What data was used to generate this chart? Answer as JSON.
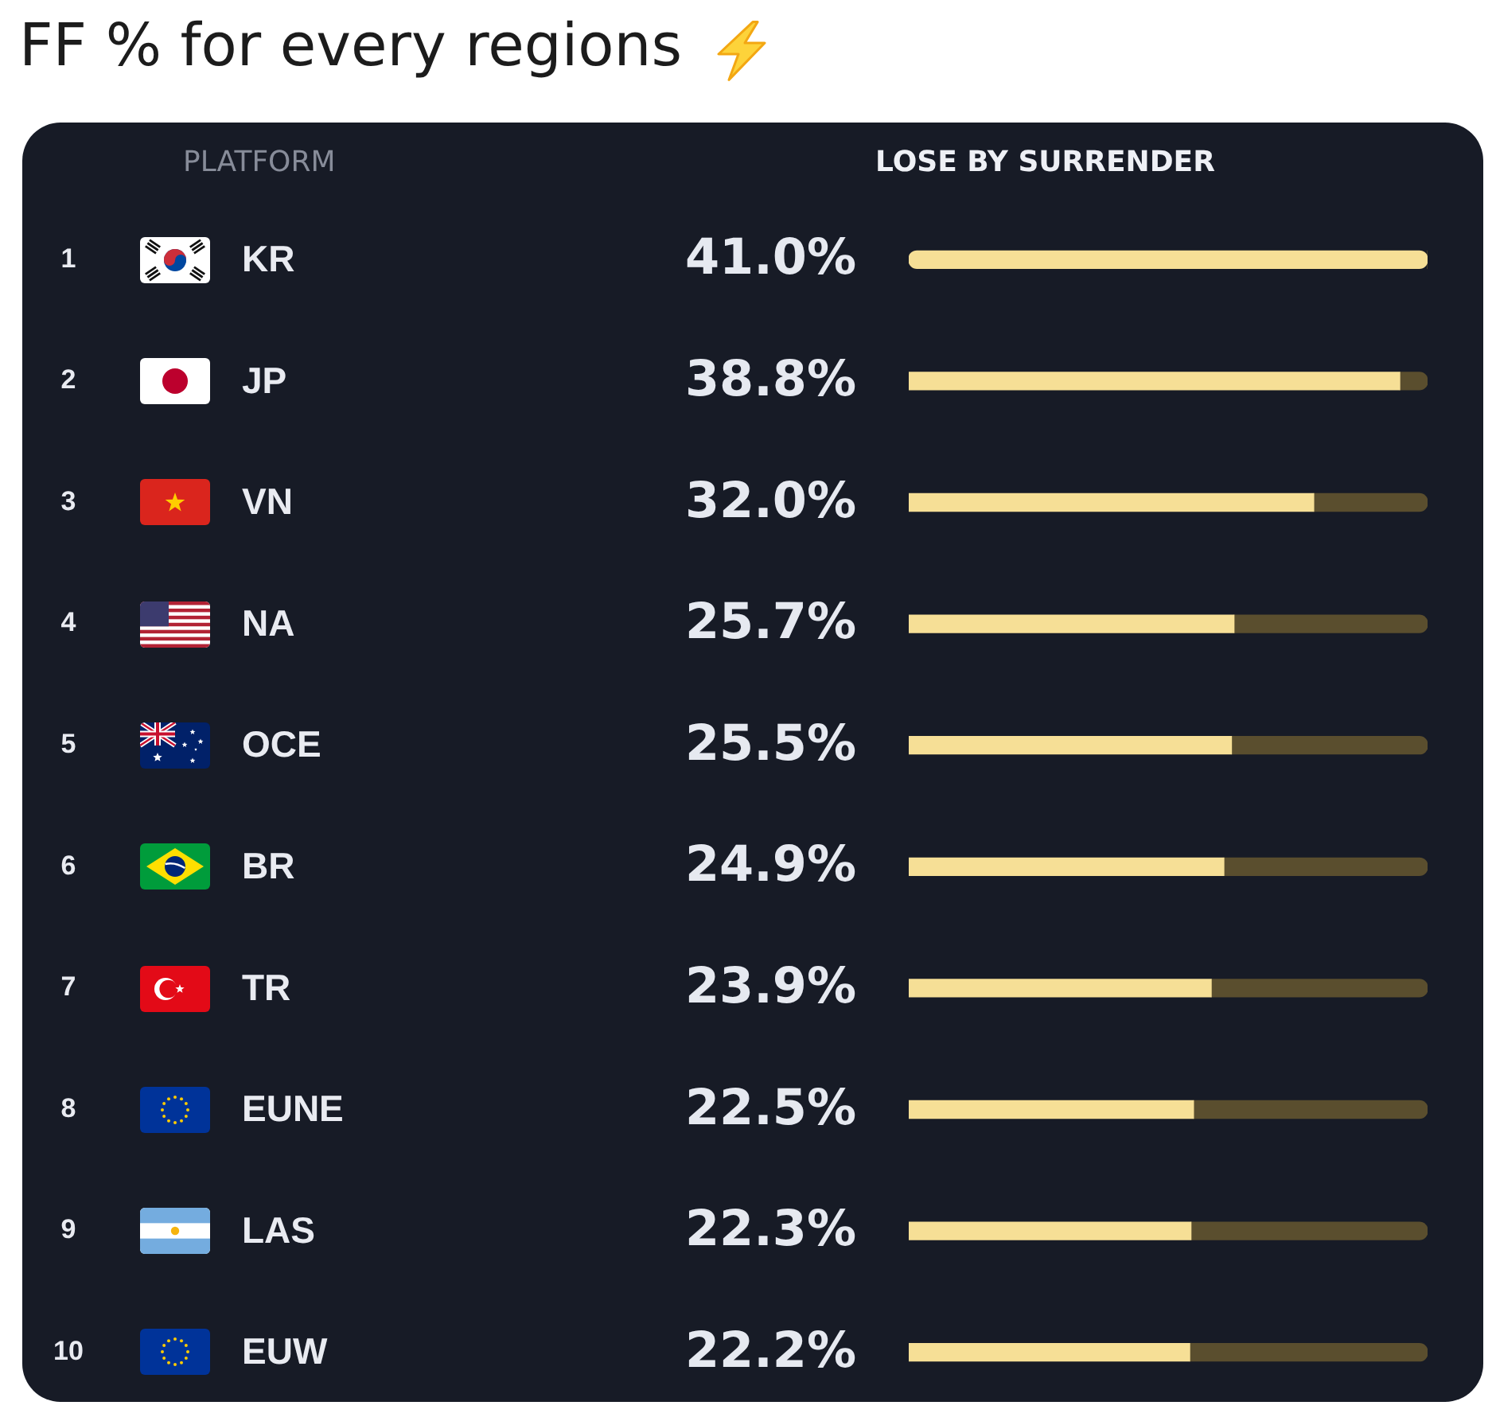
{
  "chart_data": {
    "type": "bar",
    "orientation": "horizontal",
    "stacked": true,
    "title": "FF % for every regions",
    "ylabel": "PLATFORM",
    "xlabel": "LOSE BY SURRENDER",
    "categories": [
      "KR",
      "JP",
      "VN",
      "NA",
      "OCE",
      "BR",
      "TR",
      "EUNE",
      "LAS",
      "EUW"
    ],
    "series": [
      {
        "color": "#f6df96",
        "values": [
          41.0,
          38.8,
          32.0,
          25.7,
          25.5,
          24.9,
          23.9,
          22.5,
          22.3,
          22.2
        ],
        "value_labels": [
          "41.0%",
          "38.8%",
          "32.0%",
          "25.7%",
          "25.5%",
          "24.9%",
          "23.9%",
          "22.5%",
          "22.3%",
          "22.2%"
        ]
      },
      {
        "color": "#5a4e2e",
        "values": [
          0.0,
          2.2,
          9.0,
          15.3,
          15.5,
          16.1,
          17.1,
          18.5,
          18.7,
          18.8
        ]
      }
    ],
    "xlim": [
      0,
      41.0
    ],
    "tick_labels": "y",
    "annotations": [
      "1",
      "2",
      "3",
      "4",
      "5",
      "6",
      "7",
      "8",
      "9",
      "10"
    ]
  }
}
